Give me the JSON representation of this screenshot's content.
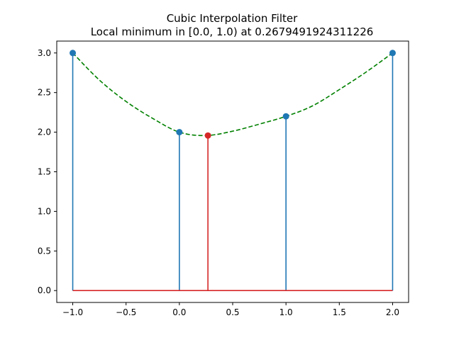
{
  "chart_data": {
    "type": "line",
    "title": "Cubic Interpolation Filter",
    "subtitle": "Local minimum in [0.0, 1.0) at 0.2679491924311226",
    "xlabel": "",
    "ylabel": "",
    "xlim": [
      -1.15,
      2.15
    ],
    "ylim": [
      -0.15,
      3.15
    ],
    "x_ticks": [
      -1.0,
      -0.5,
      0.0,
      0.5,
      1.0,
      1.5,
      2.0
    ],
    "x_tick_labels": [
      "−1.0",
      "−0.5",
      "0.0",
      "0.5",
      "1.0",
      "1.5",
      "2.0"
    ],
    "y_ticks": [
      0.0,
      0.5,
      1.0,
      1.5,
      2.0,
      2.5,
      3.0
    ],
    "y_tick_labels": [
      "0.0",
      "0.5",
      "1.0",
      "1.5",
      "2.0",
      "2.5",
      "3.0"
    ],
    "grid": false,
    "legend": "none",
    "series": [
      {
        "kind": "stem",
        "x": [
          -1,
          0,
          1,
          2
        ],
        "y": [
          3.0,
          2.0,
          2.2,
          3.0
        ],
        "color": "#1f77b4"
      },
      {
        "kind": "stem",
        "x": [
          0.2679491924311226
        ],
        "y": [
          1.9577
        ],
        "color": "#d62728"
      },
      {
        "kind": "dashed-curve",
        "x": [
          -1.0,
          -0.75,
          -0.5,
          -0.25,
          0.0,
          0.25,
          0.5,
          0.75,
          1.0,
          1.25,
          1.5,
          1.75,
          2.0
        ],
        "y": [
          3.0,
          2.6578,
          2.3875,
          2.1734,
          2.0,
          1.9578,
          2.0125,
          2.1016,
          2.2,
          2.3328,
          2.5375,
          2.7578,
          3.0
        ],
        "color": "#008000"
      }
    ],
    "baseline": {
      "y": 0.0,
      "color": "#d62728"
    }
  }
}
